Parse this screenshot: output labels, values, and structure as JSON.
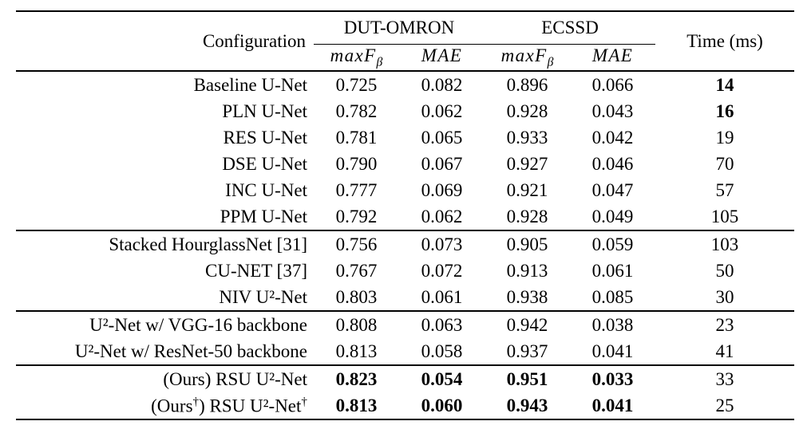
{
  "table": {
    "header": {
      "config_label": "Configuration",
      "groups": [
        {
          "label": "DUT-OMRON"
        },
        {
          "label": "ECSSD"
        }
      ],
      "subcols": [
        {
          "main": "maxF",
          "sub": "β"
        },
        {
          "main": "MAE",
          "sub": ""
        },
        {
          "main": "maxF",
          "sub": "β"
        },
        {
          "main": "MAE",
          "sub": ""
        }
      ],
      "time_label": "Time (ms)"
    },
    "groups": [
      {
        "rows": [
          {
            "config": "Baseline U-Net",
            "values": [
              "0.725",
              "0.082",
              "0.896",
              "0.066",
              "14"
            ],
            "bold": [
              false,
              false,
              false,
              false,
              true
            ]
          },
          {
            "config": "PLN U-Net",
            "values": [
              "0.782",
              "0.062",
              "0.928",
              "0.043",
              "16"
            ],
            "bold": [
              false,
              false,
              false,
              false,
              true
            ]
          },
          {
            "config": "RES U-Net",
            "values": [
              "0.781",
              "0.065",
              "0.933",
              "0.042",
              "19"
            ],
            "bold": [
              false,
              false,
              false,
              false,
              false
            ]
          },
          {
            "config": "DSE U-Net",
            "values": [
              "0.790",
              "0.067",
              "0.927",
              "0.046",
              "70"
            ],
            "bold": [
              false,
              false,
              false,
              false,
              false
            ]
          },
          {
            "config": "INC U-Net",
            "values": [
              "0.777",
              "0.069",
              "0.921",
              "0.047",
              "57"
            ],
            "bold": [
              false,
              false,
              false,
              false,
              false
            ]
          },
          {
            "config": "PPM U-Net",
            "values": [
              "0.792",
              "0.062",
              "0.928",
              "0.049",
              "105"
            ],
            "bold": [
              false,
              false,
              false,
              false,
              false
            ]
          }
        ]
      },
      {
        "rows": [
          {
            "config": "Stacked HourglassNet [31]",
            "values": [
              "0.756",
              "0.073",
              "0.905",
              "0.059",
              "103"
            ],
            "bold": [
              false,
              false,
              false,
              false,
              false
            ]
          },
          {
            "config": "CU-NET [37]",
            "values": [
              "0.767",
              "0.072",
              "0.913",
              "0.061",
              "50"
            ],
            "bold": [
              false,
              false,
              false,
              false,
              false
            ]
          },
          {
            "config": "NIV U²-Net",
            "values": [
              "0.803",
              "0.061",
              "0.938",
              "0.085",
              "30"
            ],
            "bold": [
              false,
              false,
              false,
              false,
              false
            ]
          }
        ]
      },
      {
        "rows": [
          {
            "config": "U²-Net w/ VGG-16 backbone",
            "values": [
              "0.808",
              "0.063",
              "0.942",
              "0.038",
              "23"
            ],
            "bold": [
              false,
              false,
              false,
              false,
              false
            ]
          },
          {
            "config": "U²-Net w/ ResNet-50 backbone",
            "values": [
              "0.813",
              "0.058",
              "0.937",
              "0.041",
              "41"
            ],
            "bold": [
              false,
              false,
              false,
              false,
              false
            ]
          }
        ]
      },
      {
        "rows": [
          {
            "config": "(Ours) RSU U²-Net",
            "values": [
              "0.823",
              "0.054",
              "0.951",
              "0.033",
              "33"
            ],
            "bold": [
              true,
              true,
              true,
              true,
              false
            ]
          },
          {
            "config": "(Ours†) RSU U²-Net†",
            "values": [
              "0.813",
              "0.060",
              "0.943",
              "0.041",
              "25"
            ],
            "bold": [
              true,
              true,
              true,
              true,
              false
            ]
          }
        ]
      }
    ]
  }
}
